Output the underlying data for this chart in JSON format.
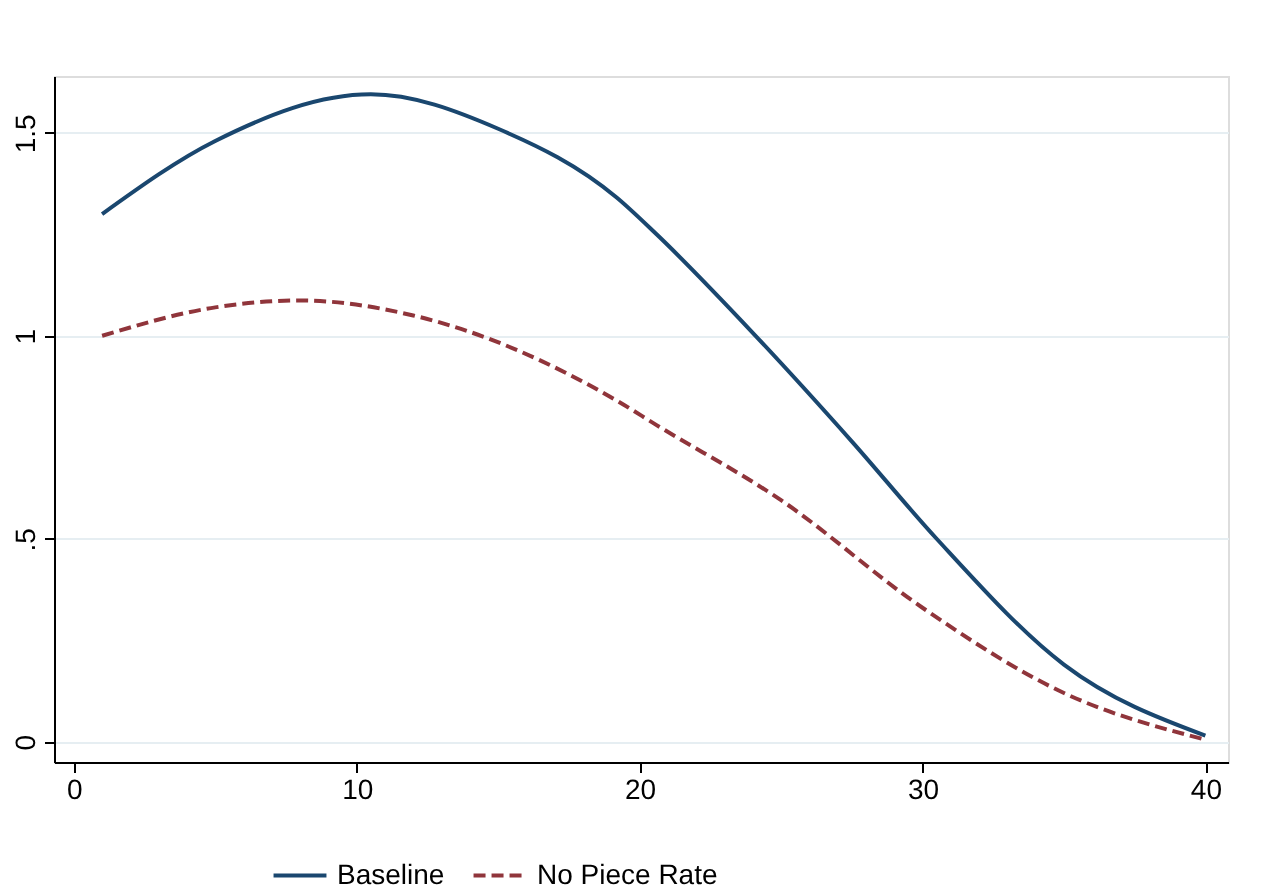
{
  "chart_data": {
    "type": "line",
    "xlim": [
      -0.7,
      40.8
    ],
    "ylim": [
      -0.05,
      1.64
    ],
    "xticks": [
      0,
      10,
      20,
      30,
      40
    ],
    "yticks": [
      0,
      {
        "value": 0.5,
        "label": ".5"
      },
      1,
      1.5
    ],
    "grid": "y",
    "legend": "bottom",
    "series": [
      {
        "name": "Baseline",
        "color": "#1a476f",
        "line_style": "solid",
        "x": [
          1,
          5,
          10.5,
          15,
          19.2,
          20.6,
          24.1,
          27.5,
          30.5,
          35,
          40
        ],
        "values": [
          1.3,
          1.48,
          1.595,
          1.51,
          1.34,
          1.25,
          1.0,
          0.74,
          0.5,
          0.19,
          0.015
        ]
      },
      {
        "name": "No Piece Rate",
        "color": "#90353b",
        "line_style": "dashed",
        "x": [
          1,
          5,
          8,
          12,
          19.2,
          20.6,
          25,
          30,
          35,
          40
        ],
        "values": [
          1.0,
          1.07,
          1.087,
          1.05,
          0.84,
          0.78,
          0.595,
          0.33,
          0.12,
          0.005
        ]
      }
    ]
  }
}
